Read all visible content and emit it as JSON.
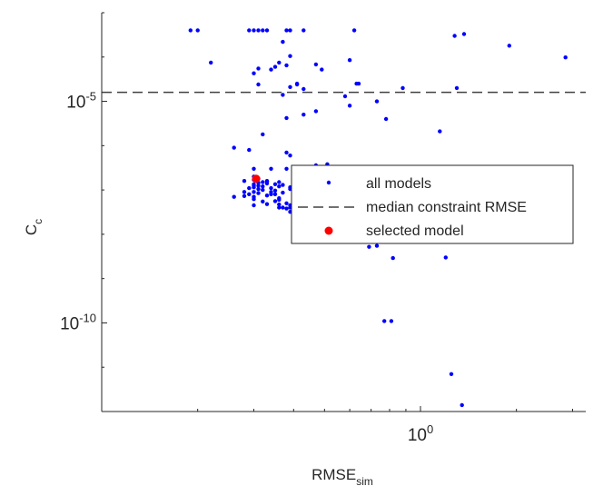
{
  "chart_data": {
    "type": "scatter",
    "xscale": "log",
    "yscale": "log",
    "xlim": [
      0.1,
      3.3
    ],
    "ylim": [
      1e-12,
      0.001
    ],
    "x_ticks": [
      {
        "value": 1,
        "base": "10",
        "exp": "0"
      }
    ],
    "y_ticks": [
      {
        "value": 1e-05,
        "base": "10",
        "exp": "-5"
      },
      {
        "value": 1e-10,
        "base": "10",
        "exp": "-10"
      }
    ],
    "xlabel": {
      "main": "RMSE",
      "sub": "sim"
    },
    "ylabel": {
      "main": "C",
      "sub": "c"
    },
    "grid": false,
    "legend": {
      "placement": "center-right",
      "entries": [
        {
          "label": "all models",
          "key": "all_models"
        },
        {
          "label": "median constraint RMSE",
          "key": "median_line"
        },
        {
          "label": "selected model",
          "key": "selected"
        }
      ]
    },
    "colors": {
      "all_models": "#0000ff",
      "selected": "#ff0000",
      "median_line": "#404040"
    },
    "median_constraint_rmse": 1.6e-05,
    "series": [
      {
        "key": "all_models",
        "points": [
          [
            0.19,
            0.0004
          ],
          [
            0.2,
            0.0004
          ],
          [
            0.29,
            0.0004
          ],
          [
            0.3,
            0.0004
          ],
          [
            0.31,
            0.0004
          ],
          [
            0.32,
            0.0004
          ],
          [
            0.33,
            0.0004
          ],
          [
            0.38,
            0.0004
          ],
          [
            0.39,
            0.0004
          ],
          [
            0.43,
            0.0004
          ],
          [
            0.62,
            0.0004
          ],
          [
            1.28,
            0.0003
          ],
          [
            1.37,
            0.00033
          ],
          [
            1.9,
            0.00018
          ],
          [
            2.85,
            9.8e-05
          ],
          [
            0.37,
            0.00022
          ],
          [
            0.22,
            7.5e-05
          ],
          [
            0.31,
            5.5e-05
          ],
          [
            0.3,
            4.3e-05
          ],
          [
            0.34,
            5.2e-05
          ],
          [
            0.35,
            6e-05
          ],
          [
            0.36,
            7.5e-05
          ],
          [
            0.38,
            6.5e-05
          ],
          [
            0.39,
            0.000105
          ],
          [
            0.47,
            6.8e-05
          ],
          [
            0.49,
            5.2e-05
          ],
          [
            0.41,
            2.5e-05
          ],
          [
            0.6,
            8.5e-05
          ],
          [
            0.63,
            2.5e-05
          ],
          [
            0.64,
            2.5e-05
          ],
          [
            0.31,
            2.4e-05
          ],
          [
            0.41,
            2.4e-05
          ],
          [
            0.43,
            1.9e-05
          ],
          [
            0.39,
            2.1e-05
          ],
          [
            0.37,
            1.4e-05
          ],
          [
            0.38,
            4.2e-06
          ],
          [
            0.88,
            2e-05
          ],
          [
            1.3,
            2e-05
          ],
          [
            0.78,
            4e-06
          ],
          [
            0.73,
            1e-05
          ],
          [
            1.15,
            2.1e-06
          ],
          [
            0.43,
            5e-06
          ],
          [
            0.32,
            1.8e-06
          ],
          [
            0.29,
            8e-07
          ],
          [
            0.26,
            9e-07
          ],
          [
            0.39,
            6e-07
          ],
          [
            0.58,
            1.3e-05
          ],
          [
            0.47,
            6e-06
          ],
          [
            0.6,
            8e-06
          ],
          [
            0.28,
            9e-08
          ],
          [
            0.31,
            1.05e-07
          ],
          [
            0.38,
            7e-07
          ],
          [
            1.45,
            1.25e-07
          ],
          [
            1.9,
            1.25e-07
          ],
          [
            1.95,
            1.3e-07
          ],
          [
            0.36,
            6e-08
          ],
          [
            0.39,
            4.5e-08
          ],
          [
            0.41,
            5.5e-08
          ],
          [
            0.42,
            7e-08
          ],
          [
            0.39,
            3.2e-08
          ],
          [
            0.36,
            4e-08
          ],
          [
            0.43,
            4.6e-08
          ],
          [
            0.38,
            3.8e-08
          ],
          [
            0.42,
            3.3e-08
          ],
          [
            0.4,
            4.7e-08
          ],
          [
            0.34,
            8e-08
          ],
          [
            0.3,
            1.7e-07
          ],
          [
            0.31,
            1.25e-07
          ],
          [
            0.36,
            1.5e-07
          ],
          [
            0.33,
            1.55e-07
          ],
          [
            0.66,
            3e-07
          ],
          [
            0.3,
            3e-07
          ],
          [
            0.3,
            7e-08
          ],
          [
            0.32,
            5.5e-08
          ],
          [
            0.26,
            7e-08
          ],
          [
            0.51,
            3.8e-07
          ],
          [
            0.47,
            3.6e-07
          ],
          [
            0.55,
            1.1e-07
          ],
          [
            0.52,
            9e-08
          ],
          [
            0.45,
            1.5e-07
          ],
          [
            0.6,
            6e-08
          ],
          [
            0.54,
            6e-08
          ],
          [
            0.34,
            3e-07
          ],
          [
            0.38,
            3e-07
          ],
          [
            0.4,
            6e-08
          ],
          [
            0.3,
            9e-08
          ],
          [
            0.33,
            7.5e-08
          ],
          [
            0.36,
            6.5e-08
          ],
          [
            0.38,
            5e-08
          ],
          [
            0.41,
            4.3e-08
          ],
          [
            0.39,
            4e-08
          ],
          [
            0.36,
            4.7e-08
          ],
          [
            0.33,
            4.8e-08
          ],
          [
            0.3,
            6.2e-08
          ],
          [
            0.29,
            8e-08
          ],
          [
            0.28,
            7.3e-08
          ],
          [
            0.34,
            1.1e-07
          ],
          [
            0.35,
            9.7e-08
          ],
          [
            0.37,
            8.7e-08
          ],
          [
            0.39,
            1.05e-07
          ],
          [
            0.42,
            9.5e-08
          ],
          [
            0.45,
            8.5e-08
          ],
          [
            0.48,
            7.6e-08
          ],
          [
            0.51,
            6.8e-08
          ],
          [
            0.54,
            6.1e-08
          ],
          [
            0.32,
            1e-07
          ],
          [
            0.35,
            8e-08
          ],
          [
            0.36,
            1.2e-07
          ],
          [
            0.43,
            1.2e-07
          ],
          [
            0.3,
            1.15e-07
          ],
          [
            0.37,
            4e-08
          ],
          [
            0.3,
            4.5e-08
          ],
          [
            0.35,
            5.6e-08
          ],
          [
            0.42,
            5e-08
          ],
          [
            0.44,
            6.6e-08
          ],
          [
            0.3,
            1.35e-07
          ],
          [
            0.37,
            1.3e-07
          ],
          [
            0.39,
            1.15e-07
          ],
          [
            0.47,
            9e-08
          ],
          [
            0.48,
            1e-07
          ],
          [
            0.34,
            9e-08
          ],
          [
            0.31,
            8.5e-08
          ],
          [
            0.29,
            1.1e-07
          ],
          [
            0.53,
            7.5e-08
          ],
          [
            0.4,
            8.2e-08
          ],
          [
            0.3,
            2e-07
          ],
          [
            0.33,
            1.4e-07
          ],
          [
            0.31,
            1.8e-07
          ],
          [
            0.28,
            1.6e-07
          ],
          [
            0.3,
            1.25e-07
          ],
          [
            0.33,
            1.6e-07
          ],
          [
            0.35,
            1.35e-07
          ],
          [
            0.32,
            1.2e-07
          ],
          [
            0.31,
            1.45e-07
          ],
          [
            0.32,
            1.5e-07
          ],
          [
            0.65,
            9e-08
          ],
          [
            0.65,
            4.5e-08
          ],
          [
            0.65,
            3.5e-08
          ],
          [
            0.64,
            2.6e-08
          ],
          [
            0.66,
            1e-08
          ],
          [
            0.66,
            1.2e-08
          ],
          [
            0.69,
            5.2e-09
          ],
          [
            0.64,
            6.9e-09
          ],
          [
            0.65,
            7.7e-09
          ],
          [
            0.73,
            5.5e-09
          ],
          [
            0.76,
            1.1e-08
          ],
          [
            0.86,
            3.5e-08
          ],
          [
            0.92,
            1.2e-08
          ],
          [
            0.96,
            1.5e-08
          ],
          [
            1.02,
            1.85e-08
          ],
          [
            1.06,
            1.7e-08
          ],
          [
            0.82,
            2.9e-09
          ],
          [
            0.77,
            1.1e-10
          ],
          [
            0.81,
            1.1e-10
          ],
          [
            1.2,
            3e-09
          ],
          [
            1.25,
            7e-12
          ],
          [
            1.35,
            1.4e-12
          ]
        ]
      },
      {
        "key": "selected",
        "points": [
          [
            0.305,
            1.8e-07
          ]
        ]
      }
    ]
  }
}
